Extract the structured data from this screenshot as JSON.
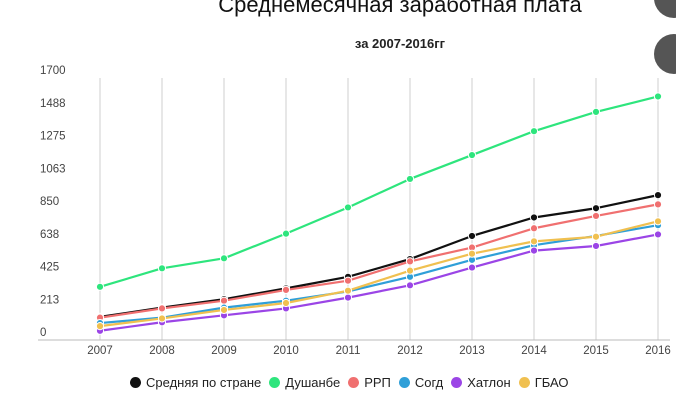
{
  "chart_data": {
    "type": "line",
    "title": "Среднемесячная заработная плата",
    "subtitle": "за 2007-2016гг",
    "xlabel": "",
    "ylabel": "",
    "categories": [
      "2007",
      "2008",
      "2009",
      "2010",
      "2011",
      "2012",
      "2013",
      "2014",
      "2015",
      "2016"
    ],
    "y_ticks": [
      "0",
      "213",
      "425",
      "638",
      "850",
      "1063",
      "1275",
      "1488",
      "1700"
    ],
    "ylim": [
      0,
      1700
    ],
    "grid": "vertical lines at categories, horizontal baseline",
    "legend_position": "bottom",
    "series": [
      {
        "name": "Средняя по стране",
        "color": "#111111",
        "values": [
          150,
          210,
          265,
          335,
          410,
          525,
          675,
          795,
          855,
          940
        ]
      },
      {
        "name": "Душанбе",
        "color": "#2ee57d",
        "values": [
          345,
          465,
          530,
          690,
          860,
          1045,
          1200,
          1355,
          1480,
          1580
        ]
      },
      {
        "name": "РРП",
        "color": "#f07070",
        "values": [
          145,
          205,
          255,
          325,
          385,
          510,
          600,
          725,
          805,
          880
        ]
      },
      {
        "name": "Согд",
        "color": "#2f9fd8",
        "values": [
          110,
          145,
          210,
          255,
          315,
          410,
          520,
          615,
          675,
          745
        ]
      },
      {
        "name": "Хатлон",
        "color": "#9b45e6",
        "values": [
          60,
          115,
          160,
          205,
          275,
          355,
          470,
          580,
          610,
          685
        ]
      },
      {
        "name": "ГБАО",
        "color": "#f0c050",
        "values": [
          90,
          140,
          195,
          240,
          320,
          450,
          560,
          640,
          670,
          770
        ]
      }
    ]
  }
}
